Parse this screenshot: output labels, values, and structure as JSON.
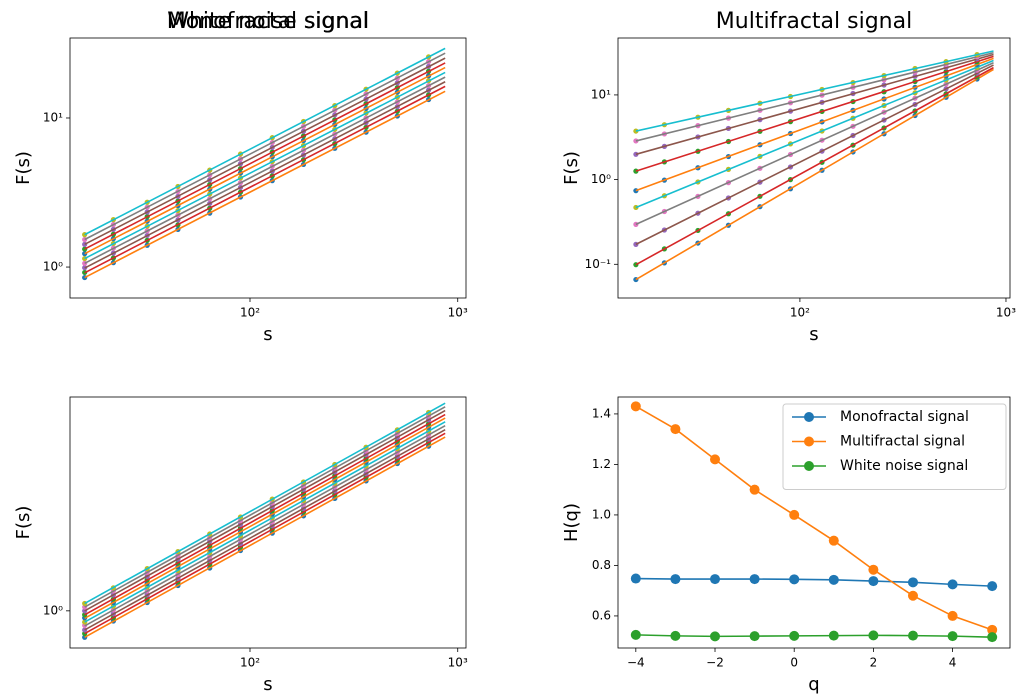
{
  "chart_data": [
    {
      "type": "scatter",
      "title": "Monofractal signal",
      "xlabel": "s",
      "ylabel": "F(s)",
      "xscale": "log",
      "yscale": "log",
      "xlim": [
        13.6,
        1096
      ],
      "ylim": [
        0.62,
        34.4
      ],
      "xticks": [
        {
          "value": 100,
          "label": "10²"
        },
        {
          "value": 1000,
          "label": "10³"
        }
      ],
      "yticks": [
        {
          "value": 1,
          "label": "10⁰"
        },
        {
          "value": 10,
          "label": "10¹"
        }
      ],
      "x": [
        16,
        22,
        32,
        45,
        64,
        90,
        128,
        181,
        256,
        362,
        512,
        724
      ],
      "fit_x": [
        16,
        870
      ],
      "series": [
        {
          "color": "#1f77b4",
          "line_color": "#ff7f0e",
          "values": [
            0.85,
            1.07,
            1.4,
            1.79,
            2.3,
            2.95,
            3.8,
            4.88,
            6.26,
            8.03,
            10.3,
            13.3
          ],
          "fit": [
            0.85,
            15.1
          ]
        },
        {
          "color": "#2ca02c",
          "line_color": "#d62728",
          "values": [
            0.92,
            1.15,
            1.51,
            1.92,
            2.48,
            3.18,
            4.09,
            5.25,
            6.73,
            8.65,
            11.1,
            14.3
          ],
          "fit": [
            0.915,
            16.3
          ]
        },
        {
          "color": "#9467bd",
          "line_color": "#8c564b",
          "values": [
            0.99,
            1.24,
            1.63,
            2.07,
            2.67,
            3.42,
            4.4,
            5.65,
            7.25,
            9.31,
            11.9,
            15.4
          ],
          "fit": [
            0.985,
            17.5
          ]
        },
        {
          "color": "#e377c2",
          "line_color": "#7f7f7f",
          "values": [
            1.06,
            1.34,
            1.75,
            2.23,
            2.87,
            3.68,
            4.74,
            6.08,
            7.8,
            10.0,
            12.8,
            16.5
          ],
          "fit": [
            1.06,
            18.8
          ]
        },
        {
          "color": "#bcbd22",
          "line_color": "#17becf",
          "values": [
            1.14,
            1.44,
            1.88,
            2.39,
            3.09,
            3.96,
            5.1,
            6.54,
            8.39,
            10.8,
            13.8,
            17.8
          ],
          "fit": [
            1.14,
            20.2
          ]
        },
        {
          "color": "#1f77b4",
          "line_color": "#ff7f0e",
          "values": [
            1.23,
            1.55,
            2.03,
            2.58,
            3.33,
            4.27,
            5.5,
            7.06,
            9.05,
            11.6,
            14.9,
            19.2
          ],
          "fit": [
            1.23,
            21.8
          ]
        },
        {
          "color": "#2ca02c",
          "line_color": "#d62728",
          "values": [
            1.32,
            1.66,
            2.18,
            2.77,
            3.58,
            4.58,
            5.9,
            7.58,
            9.72,
            12.5,
            16.0,
            20.6
          ],
          "fit": [
            1.32,
            23.4
          ]
        },
        {
          "color": "#9467bd",
          "line_color": "#8c564b",
          "values": [
            1.42,
            1.79,
            2.34,
            2.98,
            3.85,
            4.93,
            6.35,
            8.15,
            10.5,
            13.4,
            17.2,
            22.2
          ],
          "fit": [
            1.42,
            25.2
          ]
        },
        {
          "color": "#e377c2",
          "line_color": "#7f7f7f",
          "values": [
            1.53,
            1.93,
            2.52,
            3.21,
            4.15,
            5.31,
            6.84,
            8.78,
            11.3,
            14.5,
            18.5,
            23.9
          ],
          "fit": [
            1.53,
            27.2
          ]
        },
        {
          "color": "#bcbd22",
          "line_color": "#17becf",
          "values": [
            1.65,
            2.08,
            2.72,
            3.47,
            4.47,
            5.73,
            7.38,
            9.47,
            12.1,
            15.6,
            20.0,
            25.7
          ],
          "fit": [
            1.65,
            29.3
          ]
        }
      ]
    },
    {
      "type": "scatter",
      "title": "Multifractal signal",
      "xlabel": "s",
      "ylabel": "F(s)",
      "xscale": "log",
      "yscale": "log",
      "xlim": [
        13.1,
        1046
      ],
      "ylim": [
        0.04,
        47
      ],
      "xticks": [
        {
          "value": 100,
          "label": "10²"
        },
        {
          "value": 1000,
          "label": "10³"
        }
      ],
      "yticks": [
        {
          "value": 0.1,
          "label": "10⁻¹"
        },
        {
          "value": 1,
          "label": "10⁰"
        },
        {
          "value": 10,
          "label": "10¹"
        }
      ],
      "x": [
        16,
        22,
        32,
        45,
        64,
        90,
        128,
        181,
        256,
        362,
        512,
        724
      ],
      "fit_x": [
        16,
        870
      ],
      "series": [
        {
          "color": "#1f77b4",
          "line_color": "#ff7f0e",
          "values": [
            0.066,
            0.104,
            0.178,
            0.289,
            0.479,
            0.779,
            1.29,
            2.12,
            3.48,
            5.71,
            9.37,
            15.4
          ],
          "fit": [
            0.066,
            20
          ]
        },
        {
          "color": "#2ca02c",
          "line_color": "#d62728",
          "values": [
            0.099,
            0.152,
            0.251,
            0.395,
            0.635,
            1.0,
            1.6,
            2.55,
            4.07,
            6.46,
            10.3,
            16.3
          ],
          "fit": [
            0.099,
            21
          ]
        },
        {
          "color": "#9467bd",
          "line_color": "#8c564b",
          "values": [
            0.172,
            0.254,
            0.401,
            0.607,
            0.934,
            1.41,
            2.17,
            3.32,
            5.06,
            7.72,
            11.8,
            18.1
          ],
          "fit": [
            0.172,
            22.5
          ]
        },
        {
          "color": "#e377c2",
          "line_color": "#7f7f7f",
          "values": [
            0.296,
            0.42,
            0.634,
            0.921,
            1.36,
            1.98,
            2.92,
            4.26,
            6.25,
            9.15,
            13.4,
            19.6
          ],
          "fit": [
            0.296,
            24
          ]
        },
        {
          "color": "#bcbd22",
          "line_color": "#17becf",
          "values": [
            0.469,
            0.645,
            0.938,
            1.32,
            1.88,
            2.64,
            3.75,
            5.3,
            7.5,
            10.6,
            15.0,
            21.2
          ],
          "fit": [
            0.469,
            25.5
          ]
        },
        {
          "color": "#1f77b4",
          "line_color": "#ff7f0e",
          "values": [
            0.74,
            0.986,
            1.38,
            1.87,
            2.58,
            3.5,
            4.81,
            6.57,
            8.95,
            12.3,
            16.7,
            22.9
          ],
          "fit": [
            0.74,
            27
          ]
        },
        {
          "color": "#2ca02c",
          "line_color": "#d62728",
          "values": [
            1.26,
            1.62,
            2.16,
            2.82,
            3.72,
            4.84,
            6.38,
            8.35,
            10.9,
            14.4,
            18.8,
            24.7
          ],
          "fit": [
            1.26,
            28.5
          ]
        },
        {
          "color": "#9467bd",
          "line_color": "#8c564b",
          "values": [
            1.99,
            2.47,
            3.19,
            4.02,
            5.11,
            6.43,
            8.18,
            10.4,
            13.1,
            16.6,
            21.1,
            26.7
          ],
          "fit": [
            1.99,
            30
          ]
        },
        {
          "color": "#e377c2",
          "line_color": "#7f7f7f",
          "values": [
            2.86,
            3.46,
            4.34,
            5.32,
            6.58,
            8.07,
            9.95,
            12.3,
            15.1,
            18.6,
            22.9,
            28.2
          ],
          "fit": [
            2.86,
            31.5
          ]
        },
        {
          "color": "#bcbd22",
          "line_color": "#17becf",
          "values": [
            3.74,
            4.45,
            5.46,
            6.57,
            7.97,
            9.57,
            11.6,
            14.0,
            16.9,
            20.5,
            24.7,
            29.9
          ],
          "fit": [
            3.74,
            33
          ]
        }
      ]
    },
    {
      "type": "scatter",
      "title": "White noise signal",
      "xlabel": "s",
      "ylabel": "F(s)",
      "xscale": "log",
      "yscale": "log",
      "xlim": [
        13.6,
        1096
      ],
      "ylim": [
        0.68,
        9.2
      ],
      "xticks": [
        {
          "value": 100,
          "label": "10²"
        },
        {
          "value": 1000,
          "label": "10³"
        }
      ],
      "yticks": [
        {
          "value": 1,
          "label": "10⁰"
        }
      ],
      "x": [
        16,
        22,
        32,
        45,
        64,
        90,
        128,
        181,
        256,
        362,
        512,
        724
      ],
      "fit_x": [
        16,
        870
      ],
      "series": [
        {
          "color": "#1f77b4",
          "line_color": "#ff7f0e",
          "values": [
            0.76,
            0.9,
            1.09,
            1.3,
            1.56,
            1.87,
            2.24,
            2.68,
            3.21,
            3.85,
            4.61,
            5.52
          ],
          "fit": [
            0.76,
            6.07
          ]
        },
        {
          "color": "#2ca02c",
          "line_color": "#d62728",
          "values": [
            0.79,
            0.93,
            1.13,
            1.35,
            1.62,
            1.94,
            2.33,
            2.79,
            3.34,
            4.0,
            4.79,
            5.74
          ],
          "fit": [
            0.79,
            6.31
          ]
        },
        {
          "color": "#9467bd",
          "line_color": "#8c564b",
          "values": [
            0.82,
            0.97,
            1.18,
            1.4,
            1.69,
            2.01,
            2.42,
            2.89,
            3.47,
            4.15,
            4.97,
            5.95
          ],
          "fit": [
            0.82,
            6.55
          ]
        },
        {
          "color": "#e377c2",
          "line_color": "#7f7f7f",
          "values": [
            0.86,
            1.01,
            1.23,
            1.46,
            1.76,
            2.1,
            2.52,
            3.02,
            3.62,
            4.33,
            5.18,
            6.21
          ],
          "fit": [
            0.855,
            6.83
          ]
        },
        {
          "color": "#bcbd22",
          "line_color": "#17becf",
          "values": [
            0.89,
            1.05,
            1.28,
            1.52,
            1.83,
            2.18,
            2.63,
            3.14,
            3.76,
            4.5,
            5.39,
            6.46
          ],
          "fit": [
            0.89,
            7.11
          ]
        },
        {
          "color": "#1f77b4",
          "line_color": "#ff7f0e",
          "values": [
            0.93,
            1.09,
            1.33,
            1.58,
            1.9,
            2.27,
            2.73,
            3.27,
            3.91,
            4.68,
            5.61,
            6.72
          ],
          "fit": [
            0.925,
            7.39
          ]
        },
        {
          "color": "#2ca02c",
          "line_color": "#d62728",
          "values": [
            0.96,
            1.13,
            1.38,
            1.64,
            1.97,
            2.36,
            2.83,
            3.39,
            4.06,
            4.86,
            5.82,
            6.97
          ],
          "fit": [
            0.96,
            7.67
          ]
        },
        {
          "color": "#9467bd",
          "line_color": "#8c564b",
          "values": [
            1.0,
            1.18,
            1.43,
            1.71,
            2.06,
            2.45,
            2.95,
            3.53,
            4.23,
            5.06,
            6.06,
            7.26
          ],
          "fit": [
            1.0,
            7.99
          ]
        },
        {
          "color": "#e377c2",
          "line_color": "#7f7f7f",
          "values": [
            1.04,
            1.23,
            1.49,
            1.78,
            2.14,
            2.55,
            3.07,
            3.67,
            4.4,
            5.26,
            6.3,
            7.55
          ],
          "fit": [
            1.04,
            8.31
          ]
        },
        {
          "color": "#bcbd22",
          "line_color": "#17becf",
          "values": [
            1.08,
            1.27,
            1.55,
            1.85,
            2.22,
            2.65,
            3.19,
            3.81,
            4.57,
            5.46,
            6.54,
            7.84
          ],
          "fit": [
            1.08,
            8.63
          ]
        }
      ]
    },
    {
      "type": "line",
      "xlabel": "q",
      "ylabel": "H(q)",
      "legend": "upper right",
      "xlim": [
        -4.45,
        5.45
      ],
      "ylim": [
        0.473,
        1.467
      ],
      "xticks": [
        {
          "value": -4,
          "label": "−4"
        },
        {
          "value": -2,
          "label": "−2"
        },
        0,
        2,
        4
      ],
      "yticks": [
        0.6,
        0.8,
        {
          "value": 1.0,
          "label": "1.0"
        },
        1.2,
        1.4
      ],
      "x": [
        -4,
        -3,
        -2,
        -1,
        0,
        1,
        2,
        3,
        4,
        5
      ],
      "series": [
        {
          "name": "Monofractal signal",
          "color": "#1f77b4",
          "values": [
            0.748,
            0.746,
            0.746,
            0.746,
            0.745,
            0.743,
            0.738,
            0.733,
            0.725,
            0.718
          ]
        },
        {
          "name": "Multifractal signal",
          "color": "#ff7f0e",
          "values": [
            1.43,
            1.34,
            1.22,
            1.1,
            1.0,
            0.898,
            0.783,
            0.68,
            0.6,
            0.545
          ]
        },
        {
          "name": "White noise signal",
          "color": "#2ca02c",
          "values": [
            0.525,
            0.521,
            0.519,
            0.52,
            0.521,
            0.522,
            0.523,
            0.522,
            0.52,
            0.516
          ]
        }
      ]
    }
  ]
}
